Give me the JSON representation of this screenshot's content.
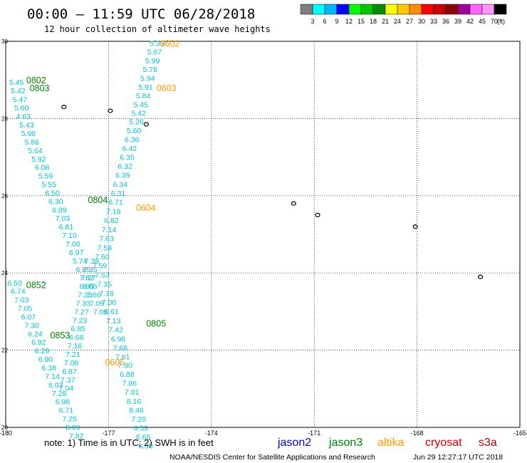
{
  "header": {
    "title": "00:00 – 11:59 UTC 06/28/2018",
    "subtitle": "12 hour collection of altimeter wave heights"
  },
  "colorbar": {
    "ticks": [
      "3",
      "6",
      "9",
      "12",
      "15",
      "18",
      "21",
      "24",
      "27",
      "30",
      "33",
      "36",
      "39",
      "42",
      "45",
      "70"
    ],
    "unit": "(ft)",
    "colors": [
      "#7f7f7f",
      "#00ffff",
      "#00b4ff",
      "#0000ff",
      "#00ff00",
      "#00c800",
      "#008c00",
      "#ffff00",
      "#ffc800",
      "#ff8c00",
      "#ff0000",
      "#c80000",
      "#8c0000",
      "#a000a0",
      "#ff64ff",
      "#ff96ff",
      "#000000"
    ]
  },
  "footer": {
    "note": "note: 1) Time is in UTC; 2) SWH is in feet",
    "credit": "NOAA/NESDIS Center for Satellite Applications and Research",
    "timestamp": "Jun 29 12:27:17 UTC 2018"
  },
  "legend": [
    {
      "name": "jason2",
      "color": "#0000cc"
    },
    {
      "name": "jason3",
      "color": "#008000"
    },
    {
      "name": "altika",
      "color": "#ff9900"
    },
    {
      "name": "cryosat",
      "color": "#cc0000"
    },
    {
      "name": "s3a",
      "color": "#990000"
    }
  ],
  "chart_data": {
    "type": "scatter",
    "xlim": [
      -180,
      -165
    ],
    "ylim": [
      20,
      30
    ],
    "xticks": [
      "-180",
      "-177",
      "-174",
      "-171",
      "-168",
      "-165"
    ],
    "yticks": [
      "30",
      "28",
      "26",
      "24",
      "22",
      "20"
    ],
    "grid": true,
    "value_color": "#00bfd0",
    "track_labels": [
      {
        "text": "0602",
        "x": -175.5,
        "y": 29.95,
        "color": "#ff9900"
      },
      {
        "text": "0603",
        "x": -175.6,
        "y": 28.8,
        "color": "#ff9900"
      },
      {
        "text": "0604",
        "x": -176.2,
        "y": 25.7,
        "color": "#ff9900"
      },
      {
        "text": "0605",
        "x": -177.1,
        "y": 21.7,
        "color": "#ff9900"
      },
      {
        "text": "0802",
        "x": -179.4,
        "y": 29.0,
        "color": "#008000"
      },
      {
        "text": "0803",
        "x": -179.3,
        "y": 28.8,
        "color": "#008000"
      },
      {
        "text": "0804",
        "x": -177.6,
        "y": 25.9,
        "color": "#008000"
      },
      {
        "text": "0805",
        "x": -175.9,
        "y": 22.7,
        "color": "#008000"
      },
      {
        "text": "0852",
        "x": -179.4,
        "y": 23.7,
        "color": "#008000"
      },
      {
        "text": "0853",
        "x": -178.7,
        "y": 22.4,
        "color": "#008000"
      }
    ],
    "series": [
      {
        "track": "altika 0602-0605",
        "points": [
          {
            "x": -175.8,
            "y": 29.95,
            "v": "5.35"
          },
          {
            "x": -175.87,
            "y": 29.73,
            "v": "5.67"
          },
          {
            "x": -175.93,
            "y": 29.5,
            "v": "5.99"
          },
          {
            "x": -176.0,
            "y": 29.28,
            "v": "5.78"
          },
          {
            "x": -176.07,
            "y": 29.05,
            "v": "5.94"
          },
          {
            "x": -176.13,
            "y": 28.82,
            "v": "5.91"
          },
          {
            "x": -176.2,
            "y": 28.6,
            "v": "5.84"
          },
          {
            "x": -176.27,
            "y": 28.37,
            "v": "5.45"
          },
          {
            "x": -176.33,
            "y": 28.15,
            "v": "5.42"
          },
          {
            "x": -176.4,
            "y": 27.92,
            "v": "5.26"
          },
          {
            "x": -176.47,
            "y": 27.69,
            "v": "5.60"
          },
          {
            "x": -176.53,
            "y": 27.46,
            "v": "6.36"
          },
          {
            "x": -176.6,
            "y": 27.23,
            "v": "6.42"
          },
          {
            "x": -176.67,
            "y": 27.0,
            "v": "6.35"
          },
          {
            "x": -176.73,
            "y": 26.77,
            "v": "6.32"
          },
          {
            "x": -176.8,
            "y": 26.54,
            "v": "6.39"
          },
          {
            "x": -176.87,
            "y": 26.3,
            "v": "6.34"
          },
          {
            "x": -176.93,
            "y": 26.07,
            "v": "6.31"
          },
          {
            "x": -177.0,
            "y": 25.84,
            "v": "6.71"
          },
          {
            "x": -177.07,
            "y": 25.6,
            "v": "7.18"
          },
          {
            "x": -177.13,
            "y": 25.37,
            "v": "6.82"
          },
          {
            "x": -177.2,
            "y": 25.13,
            "v": "7.14"
          },
          {
            "x": -177.27,
            "y": 24.9,
            "v": "7.63"
          },
          {
            "x": -177.33,
            "y": 24.66,
            "v": "7.59"
          },
          {
            "x": -177.4,
            "y": 24.43,
            "v": "7.60"
          },
          {
            "x": -177.47,
            "y": 24.2,
            "v": "7.59"
          },
          {
            "x": -177.4,
            "y": 23.96,
            "v": "7.53"
          },
          {
            "x": -177.33,
            "y": 23.72,
            "v": "7.35"
          },
          {
            "x": -177.27,
            "y": 23.48,
            "v": "7.18"
          },
          {
            "x": -177.2,
            "y": 23.25,
            "v": "7.00"
          },
          {
            "x": -177.13,
            "y": 23.01,
            "v": "6.61"
          },
          {
            "x": -177.07,
            "y": 22.77,
            "v": "7.13"
          },
          {
            "x": -177.0,
            "y": 22.54,
            "v": "7.42"
          },
          {
            "x": -176.93,
            "y": 22.3,
            "v": "6.98"
          },
          {
            "x": -176.87,
            "y": 22.07,
            "v": "7.68"
          },
          {
            "x": -176.8,
            "y": 21.84,
            "v": "7.61"
          },
          {
            "x": -176.73,
            "y": 21.61,
            "v": "7.90"
          },
          {
            "x": -176.67,
            "y": 21.38,
            "v": "6.88"
          },
          {
            "x": -176.6,
            "y": 21.15,
            "v": "7.86"
          },
          {
            "x": -176.53,
            "y": 20.92,
            "v": "7.81"
          },
          {
            "x": -176.47,
            "y": 20.68,
            "v": "8.16"
          },
          {
            "x": -176.4,
            "y": 20.45,
            "v": "8.46"
          },
          {
            "x": -176.33,
            "y": 20.22,
            "v": "7.20"
          },
          {
            "x": -176.27,
            "y": 19.99,
            "v": "6.53"
          },
          {
            "x": -176.2,
            "y": 19.76,
            "v": "6.65"
          },
          {
            "x": -176.13,
            "y": 19.53,
            "v": "6.30"
          }
        ]
      },
      {
        "track": "jason3 0802-0805",
        "points": [
          {
            "x": -179.9,
            "y": 28.95,
            "v": "5.45"
          },
          {
            "x": -179.85,
            "y": 28.73,
            "v": "5.42"
          },
          {
            "x": -179.8,
            "y": 28.5,
            "v": "5.47"
          },
          {
            "x": -179.75,
            "y": 28.28,
            "v": "5.60"
          },
          {
            "x": -179.7,
            "y": 28.06,
            "v": "4.63"
          },
          {
            "x": -179.6,
            "y": 27.84,
            "v": "5.43"
          },
          {
            "x": -179.55,
            "y": 27.62,
            "v": "5.98"
          },
          {
            "x": -179.45,
            "y": 27.4,
            "v": "5.86"
          },
          {
            "x": -179.35,
            "y": 27.18,
            "v": "5.64"
          },
          {
            "x": -179.25,
            "y": 26.96,
            "v": "5.92"
          },
          {
            "x": -179.15,
            "y": 26.74,
            "v": "6.08"
          },
          {
            "x": -179.05,
            "y": 26.52,
            "v": "5.59"
          },
          {
            "x": -178.95,
            "y": 26.3,
            "v": "5.55"
          },
          {
            "x": -178.85,
            "y": 26.08,
            "v": "6.50"
          },
          {
            "x": -178.75,
            "y": 25.86,
            "v": "6.30"
          },
          {
            "x": -178.65,
            "y": 25.64,
            "v": "6.89"
          },
          {
            "x": -178.55,
            "y": 25.42,
            "v": "7.03"
          },
          {
            "x": -178.45,
            "y": 25.2,
            "v": "6.81"
          },
          {
            "x": -178.35,
            "y": 24.98,
            "v": "7.10"
          },
          {
            "x": -178.25,
            "y": 24.76,
            "v": "7.06"
          },
          {
            "x": -178.15,
            "y": 24.54,
            "v": "6.97"
          },
          {
            "x": -178.05,
            "y": 24.32,
            "v": "5.74"
          },
          {
            "x": -177.95,
            "y": 24.1,
            "v": "6.65"
          },
          {
            "x": -177.85,
            "y": 23.88,
            "v": "7.62"
          },
          {
            "x": -177.75,
            "y": 23.66,
            "v": "8.05"
          },
          {
            "x": -177.65,
            "y": 23.44,
            "v": "7.66"
          },
          {
            "x": -177.55,
            "y": 23.22,
            "v": "7.09"
          },
          {
            "x": -177.45,
            "y": 23.0,
            "v": "7.09"
          }
        ]
      },
      {
        "track": "jason3 0852-0853",
        "points": [
          {
            "x": -179.95,
            "y": 23.75,
            "v": "6.50"
          },
          {
            "x": -179.85,
            "y": 23.53,
            "v": "6.74"
          },
          {
            "x": -179.75,
            "y": 23.31,
            "v": "7.03"
          },
          {
            "x": -179.65,
            "y": 23.09,
            "v": "7.05"
          },
          {
            "x": -179.55,
            "y": 22.87,
            "v": "6.07"
          },
          {
            "x": -179.45,
            "y": 22.65,
            "v": "7.30"
          },
          {
            "x": -179.35,
            "y": 22.43,
            "v": "6.24"
          },
          {
            "x": -179.25,
            "y": 22.21,
            "v": "6.92"
          },
          {
            "x": -179.15,
            "y": 21.99,
            "v": "6.29"
          },
          {
            "x": -179.05,
            "y": 21.77,
            "v": "6.90"
          },
          {
            "x": -178.95,
            "y": 21.55,
            "v": "6.38"
          },
          {
            "x": -178.85,
            "y": 21.33,
            "v": "7.14"
          },
          {
            "x": -178.75,
            "y": 21.11,
            "v": "6.03"
          },
          {
            "x": -178.65,
            "y": 20.89,
            "v": "7.28"
          },
          {
            "x": -178.55,
            "y": 20.67,
            "v": "6.98"
          },
          {
            "x": -178.45,
            "y": 20.45,
            "v": "6.71"
          },
          {
            "x": -178.35,
            "y": 20.23,
            "v": "7.25"
          },
          {
            "x": -178.25,
            "y": 20.01,
            "v": "8.09"
          },
          {
            "x": -178.15,
            "y": 19.79,
            "v": "7.82"
          }
        ]
      },
      {
        "track": "jason3 0803-0853 crossing",
        "points": [
          {
            "x": -177.7,
            "y": 24.32,
            "v": "7.39"
          },
          {
            "x": -177.75,
            "y": 24.1,
            "v": "7.35"
          },
          {
            "x": -177.8,
            "y": 23.88,
            "v": "7.27"
          },
          {
            "x": -177.85,
            "y": 23.66,
            "v": "6.95"
          },
          {
            "x": -177.9,
            "y": 23.44,
            "v": "7.23"
          },
          {
            "x": -177.95,
            "y": 23.22,
            "v": "7.33"
          },
          {
            "x": -178.0,
            "y": 23.0,
            "v": "7.27"
          },
          {
            "x": -178.05,
            "y": 22.78,
            "v": "7.23"
          },
          {
            "x": -178.1,
            "y": 22.56,
            "v": "6.85"
          },
          {
            "x": -178.15,
            "y": 22.34,
            "v": "6.68"
          },
          {
            "x": -178.2,
            "y": 22.12,
            "v": "7.16"
          },
          {
            "x": -178.25,
            "y": 21.9,
            "v": "7.21"
          },
          {
            "x": -178.3,
            "y": 21.68,
            "v": "7.08"
          },
          {
            "x": -178.35,
            "y": 21.46,
            "v": "6.87"
          },
          {
            "x": -178.4,
            "y": 21.24,
            "v": "7.37"
          },
          {
            "x": -178.45,
            "y": 21.02,
            "v": "7.04"
          }
        ]
      }
    ],
    "islands": [
      {
        "x": -178.3,
        "y": 28.3
      },
      {
        "x": -176.95,
        "y": 28.2
      },
      {
        "x": -175.9,
        "y": 27.85
      },
      {
        "x": -171.6,
        "y": 25.8
      },
      {
        "x": -170.9,
        "y": 25.5
      },
      {
        "x": -168.05,
        "y": 25.2
      },
      {
        "x": -166.15,
        "y": 23.9
      }
    ]
  }
}
